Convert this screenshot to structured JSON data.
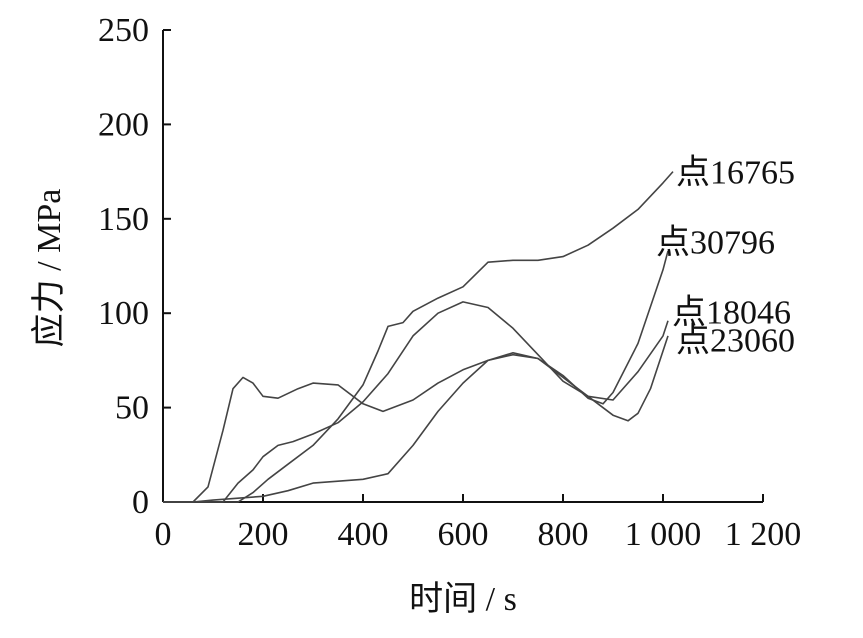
{
  "chart_data": {
    "type": "line",
    "xlabel": "时间 / s",
    "ylabel": "应力 / MPa",
    "xlim": [
      0,
      1200
    ],
    "ylim": [
      0,
      250
    ],
    "x_ticks": [
      0,
      200,
      400,
      600,
      800,
      1000,
      1200
    ],
    "x_tick_labels": [
      "0",
      "200",
      "400",
      "600",
      "800",
      "1 000",
      "1 200"
    ],
    "y_ticks": [
      0,
      50,
      100,
      150,
      200,
      250
    ],
    "y_tick_labels": [
      "0",
      "50",
      "100",
      "150",
      "200",
      "250"
    ],
    "grid": false,
    "legend": "inline labels at right end of each curve",
    "line_color": "#444444",
    "series": [
      {
        "name": "点23060",
        "points": [
          [
            0,
            0
          ],
          [
            60,
            0
          ],
          [
            100,
            1
          ],
          [
            150,
            2
          ],
          [
            200,
            3
          ],
          [
            250,
            6
          ],
          [
            300,
            10
          ],
          [
            350,
            11
          ],
          [
            400,
            12
          ],
          [
            450,
            15
          ],
          [
            500,
            30
          ],
          [
            550,
            48
          ],
          [
            600,
            63
          ],
          [
            650,
            75
          ],
          [
            700,
            79
          ],
          [
            750,
            76
          ],
          [
            800,
            66
          ],
          [
            850,
            56
          ],
          [
            900,
            46
          ],
          [
            930,
            43
          ],
          [
            950,
            47
          ],
          [
            975,
            60
          ],
          [
            1000,
            80
          ],
          [
            1010,
            88
          ]
        ]
      },
      {
        "name": "点30796",
        "points": [
          [
            0,
            0
          ],
          [
            60,
            0
          ],
          [
            90,
            8
          ],
          [
            120,
            38
          ],
          [
            140,
            60
          ],
          [
            160,
            66
          ],
          [
            180,
            63
          ],
          [
            200,
            56
          ],
          [
            230,
            55
          ],
          [
            270,
            60
          ],
          [
            300,
            63
          ],
          [
            350,
            62
          ],
          [
            400,
            52
          ],
          [
            440,
            48
          ],
          [
            500,
            54
          ],
          [
            550,
            63
          ],
          [
            600,
            70
          ],
          [
            650,
            75
          ],
          [
            700,
            78
          ],
          [
            750,
            76
          ],
          [
            800,
            67
          ],
          [
            850,
            55
          ],
          [
            880,
            52
          ],
          [
            900,
            58
          ],
          [
            950,
            84
          ],
          [
            1000,
            123
          ],
          [
            1010,
            133
          ]
        ]
      },
      {
        "name": "点18046",
        "points": [
          [
            0,
            0
          ],
          [
            120,
            0
          ],
          [
            150,
            10
          ],
          [
            180,
            17
          ],
          [
            200,
            24
          ],
          [
            230,
            30
          ],
          [
            260,
            32
          ],
          [
            300,
            36
          ],
          [
            350,
            42
          ],
          [
            400,
            53
          ],
          [
            450,
            68
          ],
          [
            500,
            88
          ],
          [
            550,
            100
          ],
          [
            600,
            106
          ],
          [
            650,
            103
          ],
          [
            700,
            92
          ],
          [
            750,
            78
          ],
          [
            800,
            64
          ],
          [
            850,
            56
          ],
          [
            900,
            54
          ],
          [
            950,
            69
          ],
          [
            1000,
            88
          ],
          [
            1010,
            96
          ]
        ]
      },
      {
        "name": "点16765",
        "points": [
          [
            0,
            0
          ],
          [
            150,
            0
          ],
          [
            180,
            5
          ],
          [
            210,
            12
          ],
          [
            250,
            20
          ],
          [
            300,
            30
          ],
          [
            350,
            44
          ],
          [
            400,
            62
          ],
          [
            430,
            80
          ],
          [
            450,
            93
          ],
          [
            480,
            95
          ],
          [
            500,
            101
          ],
          [
            550,
            108
          ],
          [
            600,
            114
          ],
          [
            650,
            127
          ],
          [
            700,
            128
          ],
          [
            750,
            128
          ],
          [
            800,
            130
          ],
          [
            850,
            136
          ],
          [
            900,
            145
          ],
          [
            950,
            155
          ],
          [
            1000,
            169
          ],
          [
            1020,
            175
          ]
        ]
      }
    ],
    "series_label_positions": [
      {
        "name": "点23060",
        "y_value": 86
      },
      {
        "name": "点30796",
        "y_value": 138
      },
      {
        "name": "点18046",
        "y_value": 101
      },
      {
        "name": "点16765",
        "y_value": 175
      }
    ]
  }
}
